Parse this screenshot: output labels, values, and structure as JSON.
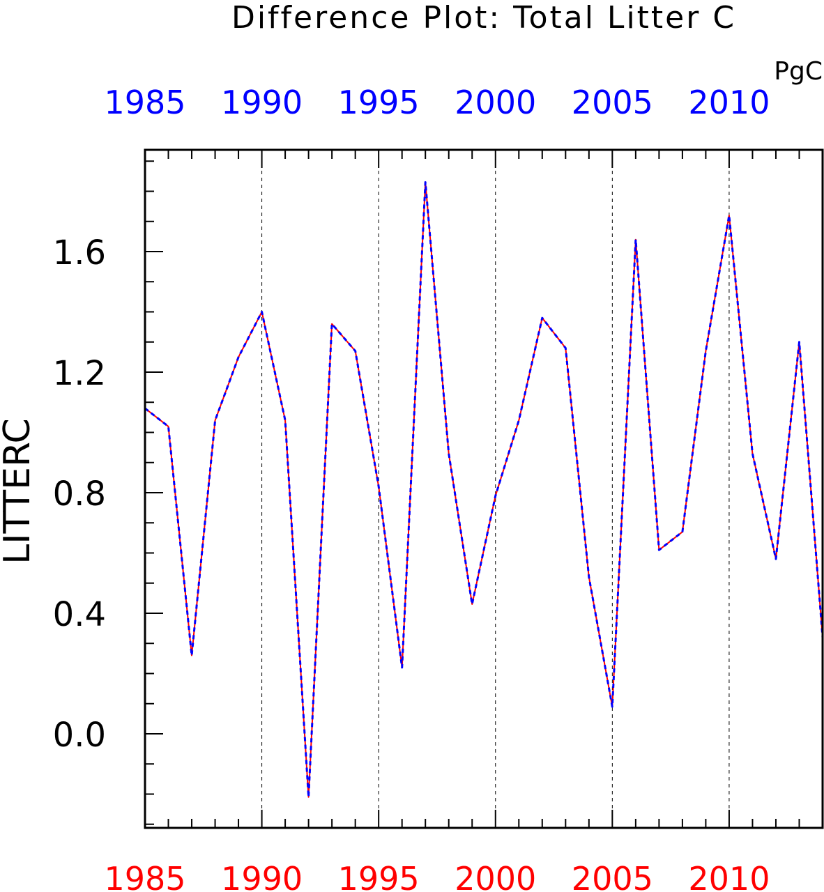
{
  "chart_data": {
    "type": "line",
    "title": "Difference Plot: Total Litter C",
    "units": "PgC",
    "ylabel": "LITTERC",
    "xlim": [
      1985,
      2014
    ],
    "ylim": [
      -0.3,
      1.95
    ],
    "yticks": [
      0.0,
      0.4,
      0.8,
      1.2,
      1.6
    ],
    "ytick_labels": [
      "0.0",
      "0.4",
      "0.8",
      "1.2",
      "1.6"
    ],
    "xticks": [
      1985,
      1990,
      1995,
      2000,
      2005,
      2010
    ],
    "xtick_labels": [
      "1985",
      "1990",
      "1995",
      "2000",
      "2005",
      "2010"
    ],
    "top_axis_color": "#0000ff",
    "bottom_axis_color": "#ff0000",
    "grid": "vertical dashed at major x ticks",
    "x": [
      1985,
      1986,
      1987,
      1988,
      1989,
      1990,
      1991,
      1992,
      1993,
      1994,
      1995,
      1996,
      1997,
      1998,
      1999,
      2000,
      2001,
      2002,
      2003,
      2004,
      2005,
      2006,
      2007,
      2008,
      2009,
      2010,
      2011,
      2012,
      2013,
      2014
    ],
    "series": [
      {
        "color": "#ff0000",
        "style": "solid",
        "values": [
          1.08,
          1.02,
          0.26,
          1.04,
          1.25,
          1.4,
          1.04,
          -0.21,
          1.36,
          1.27,
          0.82,
          0.22,
          1.83,
          0.93,
          0.43,
          0.79,
          1.04,
          1.38,
          1.28,
          0.52,
          0.09,
          1.64,
          0.61,
          0.67,
          1.27,
          1.72,
          0.93,
          0.58,
          1.3,
          0.32
        ]
      },
      {
        "color": "#0000ff",
        "style": "dashed",
        "values": [
          1.08,
          1.02,
          0.26,
          1.04,
          1.25,
          1.4,
          1.04,
          -0.21,
          1.36,
          1.27,
          0.82,
          0.22,
          1.83,
          0.93,
          0.43,
          0.79,
          1.04,
          1.38,
          1.28,
          0.52,
          0.09,
          1.64,
          0.61,
          0.67,
          1.27,
          1.72,
          0.93,
          0.58,
          1.3,
          0.32
        ]
      }
    ]
  }
}
